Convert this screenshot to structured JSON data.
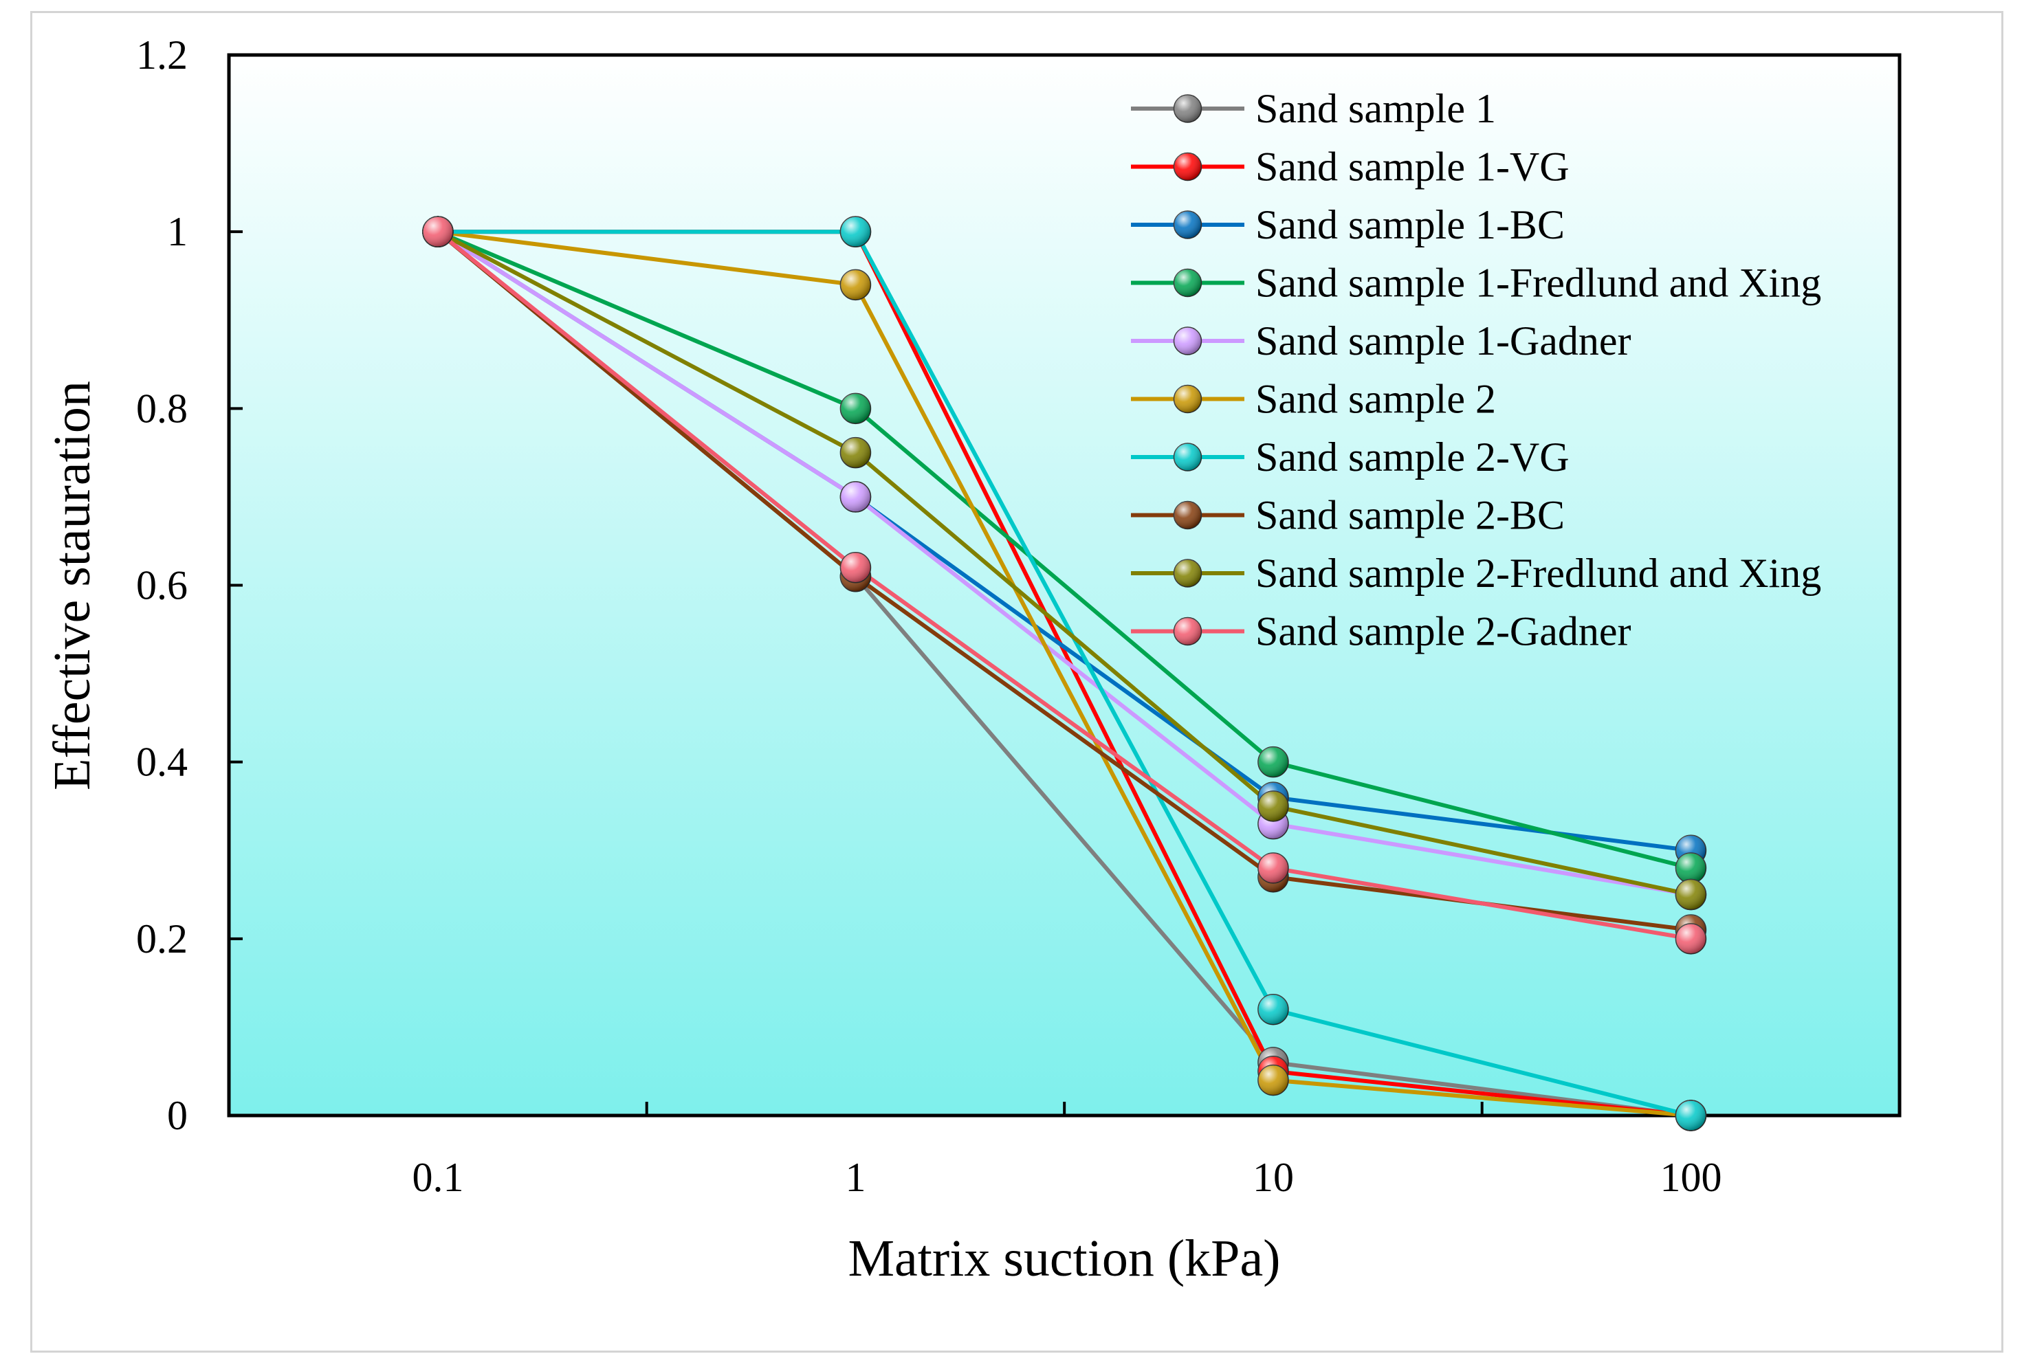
{
  "chart_data": {
    "type": "line",
    "title": "",
    "xlabel": "Matrix suction (kPa)",
    "ylabel": "Effective stauration",
    "x_scale": "log",
    "x": [
      0.1,
      1,
      10,
      100
    ],
    "x_tick_labels": [
      "0.1",
      "1",
      "10",
      "100"
    ],
    "xlim": [
      0.0316,
      316
    ],
    "ylim": [
      0,
      1.2
    ],
    "y_ticks": [
      0,
      0.2,
      0.4,
      0.6,
      0.8,
      1,
      1.2
    ],
    "y_tick_labels": [
      "0",
      "0.2",
      "0.4",
      "0.6",
      "0.8",
      "1",
      "1.2"
    ],
    "grid": false,
    "legend_position": "top-right",
    "series": [
      {
        "name": "Sand sample 1",
        "color": "#7f7f7f",
        "values": [
          1,
          0.61,
          0.06,
          0
        ]
      },
      {
        "name": "Sand sample 1-VG",
        "color": "#ff0000",
        "values": [
          1,
          1,
          0.05,
          0
        ]
      },
      {
        "name": "Sand sample 1-BC",
        "color": "#0070c0",
        "values": [
          1,
          0.7,
          0.36,
          0.3
        ]
      },
      {
        "name": "Sand sample 1-Fredlund and Xing",
        "color": "#00a550",
        "values": [
          1,
          0.8,
          0.4,
          0.28
        ]
      },
      {
        "name": "Sand sample 1-Gadner",
        "color": "#cc99ff",
        "values": [
          1,
          0.7,
          0.33,
          0.25
        ]
      },
      {
        "name": "Sand sample 2",
        "color": "#c89600",
        "values": [
          1,
          0.94,
          0.04,
          0
        ]
      },
      {
        "name": "Sand sample 2-VG",
        "color": "#00c8c8",
        "values": [
          1,
          1,
          0.12,
          0
        ]
      },
      {
        "name": "Sand sample 2-BC",
        "color": "#843c0c",
        "values": [
          1,
          0.61,
          0.27,
          0.21
        ]
      },
      {
        "name": "Sand sample 2-Fredlund and Xing",
        "color": "#808000",
        "values": [
          1,
          0.75,
          0.35,
          0.25
        ]
      },
      {
        "name": "Sand sample 2-Gadner",
        "color": "#f25a6e",
        "values": [
          1,
          0.62,
          0.28,
          0.2
        ]
      }
    ]
  }
}
